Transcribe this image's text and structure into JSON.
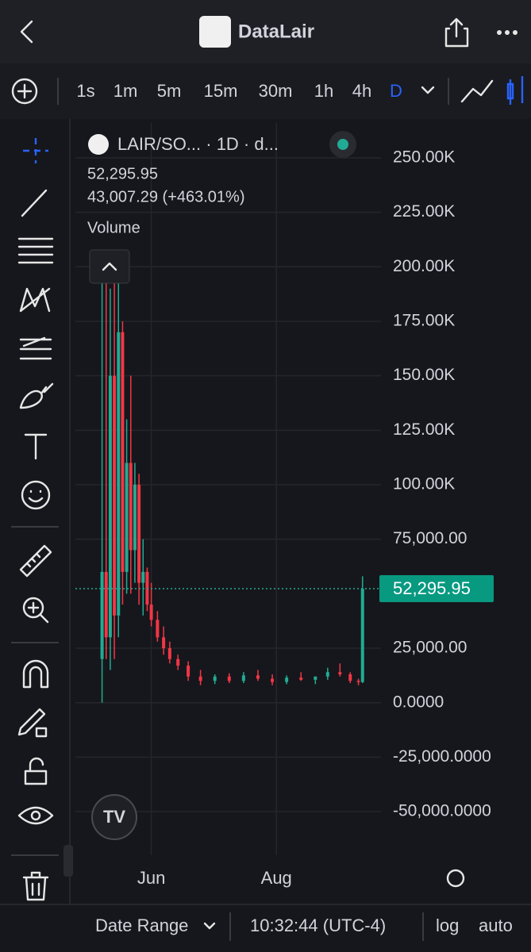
{
  "header": {
    "title": "DataLair"
  },
  "intervals": [
    "1s",
    "1m",
    "5m",
    "15m",
    "30m",
    "1h",
    "4h",
    "D"
  ],
  "legend": {
    "symbol": "LAIR/SO... · 1D · d...",
    "price": "52,295.95",
    "change": "43,007.29 (+463.01%)",
    "study": "Volume"
  },
  "chart_data": {
    "type": "candlestick",
    "up_color": "#22ab94",
    "down_color": "#f23645",
    "x": [
      0,
      2,
      4,
      6,
      8,
      10,
      12,
      14,
      16,
      18,
      20,
      22,
      24,
      27,
      30,
      33,
      37,
      42,
      48,
      55,
      62,
      69,
      76,
      83,
      90,
      97,
      104,
      110,
      116,
      121,
      125,
      127
    ],
    "open": [
      20000,
      60000,
      30000,
      150000,
      40000,
      170000,
      60000,
      110000,
      70000,
      100000,
      55000,
      60000,
      45000,
      38000,
      30000,
      25000,
      20000,
      17000,
      12000,
      10000,
      12000,
      10000,
      12500,
      11000,
      9500,
      11500,
      10500,
      12000,
      14000,
      13000,
      10000,
      9500
    ],
    "high": [
      200000,
      195000,
      190000,
      200000,
      195000,
      175000,
      130000,
      150000,
      110000,
      105000,
      75000,
      62000,
      55000,
      42000,
      35000,
      28000,
      22000,
      19000,
      15000,
      13000,
      13500,
      14000,
      15000,
      13000,
      12500,
      14000,
      12000,
      16000,
      18000,
      14000,
      11000,
      58000
    ],
    "low": [
      0,
      20000,
      15000,
      20000,
      30000,
      45000,
      50000,
      50000,
      55000,
      45000,
      40000,
      42000,
      35000,
      28000,
      22000,
      18000,
      15000,
      10000,
      8000,
      8500,
      9000,
      9000,
      10000,
      8000,
      8500,
      10000,
      8500,
      10500,
      12000,
      9000,
      8000,
      9000
    ],
    "close": [
      60000,
      30000,
      150000,
      40000,
      170000,
      60000,
      110000,
      70000,
      100000,
      55000,
      60000,
      45000,
      38000,
      30000,
      25000,
      20000,
      17000,
      12000,
      10000,
      12000,
      10000,
      12500,
      11000,
      9500,
      11500,
      10500,
      12000,
      14000,
      13000,
      10000,
      9500,
      52295.95
    ],
    "last_price_label": "52,295.95",
    "xlim": [
      -13,
      136
    ],
    "xticks": [
      {
        "value": 24,
        "label": "Jun"
      },
      {
        "value": 85,
        "label": "Aug"
      }
    ],
    "ylim": [
      -70000,
      266000
    ],
    "yticks": [
      {
        "value": 250000,
        "label": "250.00K"
      },
      {
        "value": 225000,
        "label": "225.00K"
      },
      {
        "value": 200000,
        "label": "200.00K"
      },
      {
        "value": 175000,
        "label": "175.00K"
      },
      {
        "value": 150000,
        "label": "150.00K"
      },
      {
        "value": 125000,
        "label": "125.00K"
      },
      {
        "value": 100000,
        "label": "100.00K"
      },
      {
        "value": 75000,
        "label": "75,000.00"
      },
      {
        "value": 25000,
        "label": "25,000.00"
      },
      {
        "value": 0,
        "label": "0.0000"
      },
      {
        "value": -25000,
        "label": "-25,000.0000"
      },
      {
        "value": -50000,
        "label": "-50,000.0000"
      }
    ],
    "grid": true
  },
  "footer": {
    "date_range": "Date Range",
    "time": "10:32:44 (UTC-4)",
    "log": "log",
    "auto": "auto"
  }
}
